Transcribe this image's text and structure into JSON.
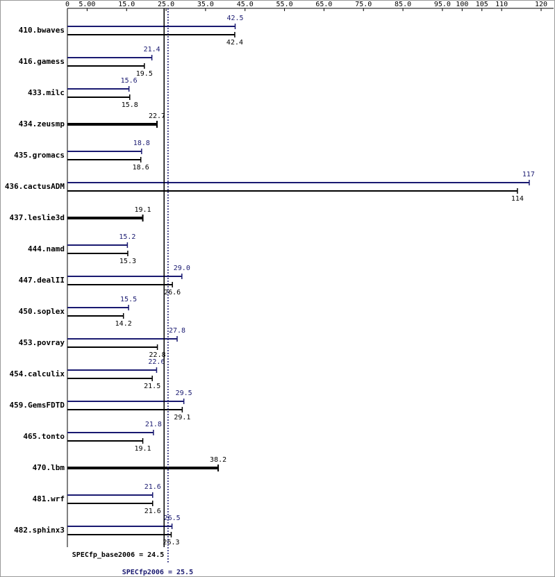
{
  "chart_data": {
    "type": "bar",
    "orientation": "horizontal",
    "categories": [
      "410.bwaves",
      "416.gamess",
      "433.milc",
      "434.zeusmp",
      "435.gromacs",
      "436.cactusADM",
      "437.leslie3d",
      "444.namd",
      "447.dealII",
      "450.soplex",
      "453.povray",
      "454.calculix",
      "459.GemsFDTD",
      "465.tonto",
      "470.lbm",
      "481.wrf",
      "482.sphinx3"
    ],
    "series": [
      {
        "color": "#191970",
        "values": [
          42.5,
          21.4,
          15.6,
          null,
          18.8,
          117,
          null,
          15.2,
          29.0,
          15.5,
          27.8,
          22.6,
          29.5,
          21.8,
          null,
          21.6,
          26.5
        ],
        "value_labels": [
          "42.5",
          "21.4",
          "15.6",
          null,
          "18.8",
          "117",
          null,
          "15.2",
          "29.0",
          "15.5",
          "27.8",
          "22.6",
          "29.5",
          "21.8",
          null,
          "21.6",
          "26.5"
        ]
      },
      {
        "color": "#000000",
        "values": [
          42.4,
          19.5,
          15.8,
          22.7,
          18.6,
          114,
          19.1,
          15.3,
          26.6,
          14.2,
          22.8,
          21.5,
          29.1,
          19.1,
          38.2,
          21.6,
          26.3
        ]
      }
    ],
    "xlim": [
      0,
      120
    ],
    "xticks": [
      0,
      {
        "value": 5,
        "label": "5.00"
      },
      {
        "value": 15,
        "label": "15.0"
      },
      {
        "value": 25,
        "label": "25.0"
      },
      {
        "value": 35,
        "label": "35.0"
      },
      {
        "value": 45,
        "label": "45.0"
      },
      {
        "value": 55,
        "label": "55.0"
      },
      {
        "value": 65,
        "label": "65.0"
      },
      {
        "value": 75,
        "label": "75.0"
      },
      {
        "value": 85,
        "label": "85.0"
      },
      {
        "value": 95,
        "label": "95.0"
      },
      100,
      105,
      110,
      120
    ],
    "reference_lines": [
      {
        "label": "SPECfp_base2006 = 24.5",
        "value": 24.5,
        "color": "#000000",
        "style": "solid"
      },
      {
        "label": "SPECfp2006 = 25.5",
        "value": 25.5,
        "color": "#191970",
        "style": "dotted"
      }
    ]
  }
}
